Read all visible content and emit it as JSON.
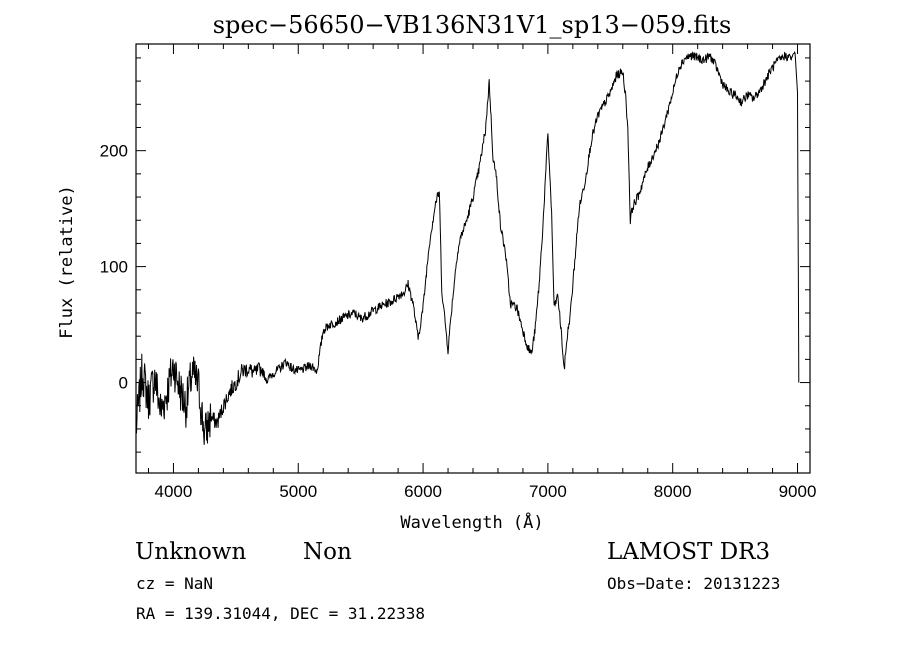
{
  "chart_data": {
    "type": "line",
    "title": "spec−56650−VB136N31V1_sp13−059.fits",
    "xlabel": "Wavelength (Å)",
    "ylabel": "Flux (relative)",
    "xlim": [
      3700,
      9100
    ],
    "ylim": [
      -78,
      292
    ],
    "xticks": [
      4000,
      5000,
      6000,
      7000,
      8000,
      9000
    ],
    "yticks": [
      0,
      100,
      200
    ],
    "grid": false,
    "series": [
      {
        "x": [
          3700,
          3750,
          3800,
          3850,
          3900,
          3950,
          4000,
          4050,
          4100,
          4150,
          4200,
          4250,
          4300,
          4350,
          4400,
          4450,
          4500,
          4550,
          4600,
          4650,
          4700,
          4750,
          4800,
          4850,
          4900,
          4950,
          5000,
          5050,
          5100,
          5150,
          5200,
          5250,
          5300,
          5350,
          5400,
          5450,
          5500,
          5550,
          5600,
          5650,
          5700,
          5750,
          5800,
          5850,
          5880,
          5920,
          5960,
          6000,
          6050,
          6100,
          6130,
          6150,
          6200,
          6230,
          6270,
          6300,
          6350,
          6400,
          6450,
          6500,
          6530,
          6560,
          6590,
          6620,
          6660,
          6700,
          6750,
          6800,
          6840,
          6870,
          6900,
          6930,
          6960,
          7000,
          7030,
          7050,
          7080,
          7110,
          7130,
          7150,
          7180,
          7200,
          7250,
          7300,
          7350,
          7400,
          7450,
          7500,
          7550,
          7600,
          7620,
          7640,
          7660,
          7680,
          7720,
          7800,
          7900,
          8000,
          8050,
          8100,
          8150,
          8200,
          8250,
          8300,
          8350,
          8400,
          8450,
          8500,
          8550,
          8600,
          8650,
          8700,
          8750,
          8800,
          8850,
          8900,
          8950,
          8980,
          9000,
          9010
        ],
        "y": [
          -40,
          10,
          -15,
          5,
          -25,
          -8,
          15,
          -5,
          -20,
          8,
          -3,
          -45,
          -30,
          -35,
          -20,
          -8,
          0,
          10,
          12,
          8,
          12,
          2,
          8,
          12,
          18,
          12,
          10,
          12,
          15,
          10,
          45,
          50,
          52,
          55,
          58,
          60,
          55,
          58,
          62,
          65,
          68,
          70,
          75,
          78,
          85,
          68,
          38,
          65,
          120,
          155,
          165,
          80,
          28,
          65,
          108,
          125,
          140,
          160,
          185,
          218,
          260,
          195,
          175,
          135,
          112,
          68,
          65,
          45,
          30,
          25,
          48,
          85,
          135,
          215,
          145,
          65,
          75,
          40,
          10,
          35,
          60,
          85,
          150,
          175,
          210,
          230,
          240,
          250,
          265,
          268,
          250,
          220,
          140,
          152,
          160,
          185,
          210,
          250,
          272,
          280,
          282,
          280,
          278,
          282,
          272,
          258,
          250,
          248,
          242,
          248,
          245,
          252,
          262,
          272,
          278,
          282,
          280,
          285,
          250,
          0
        ]
      }
    ]
  },
  "info": {
    "object_class": "Unknown",
    "subclass": "Non",
    "survey": "LAMOST DR3",
    "cz": "cz = NaN",
    "obs_date": "Obs−Date: 20131223",
    "coords": "RA = 139.31044, DEC =  31.22338"
  }
}
